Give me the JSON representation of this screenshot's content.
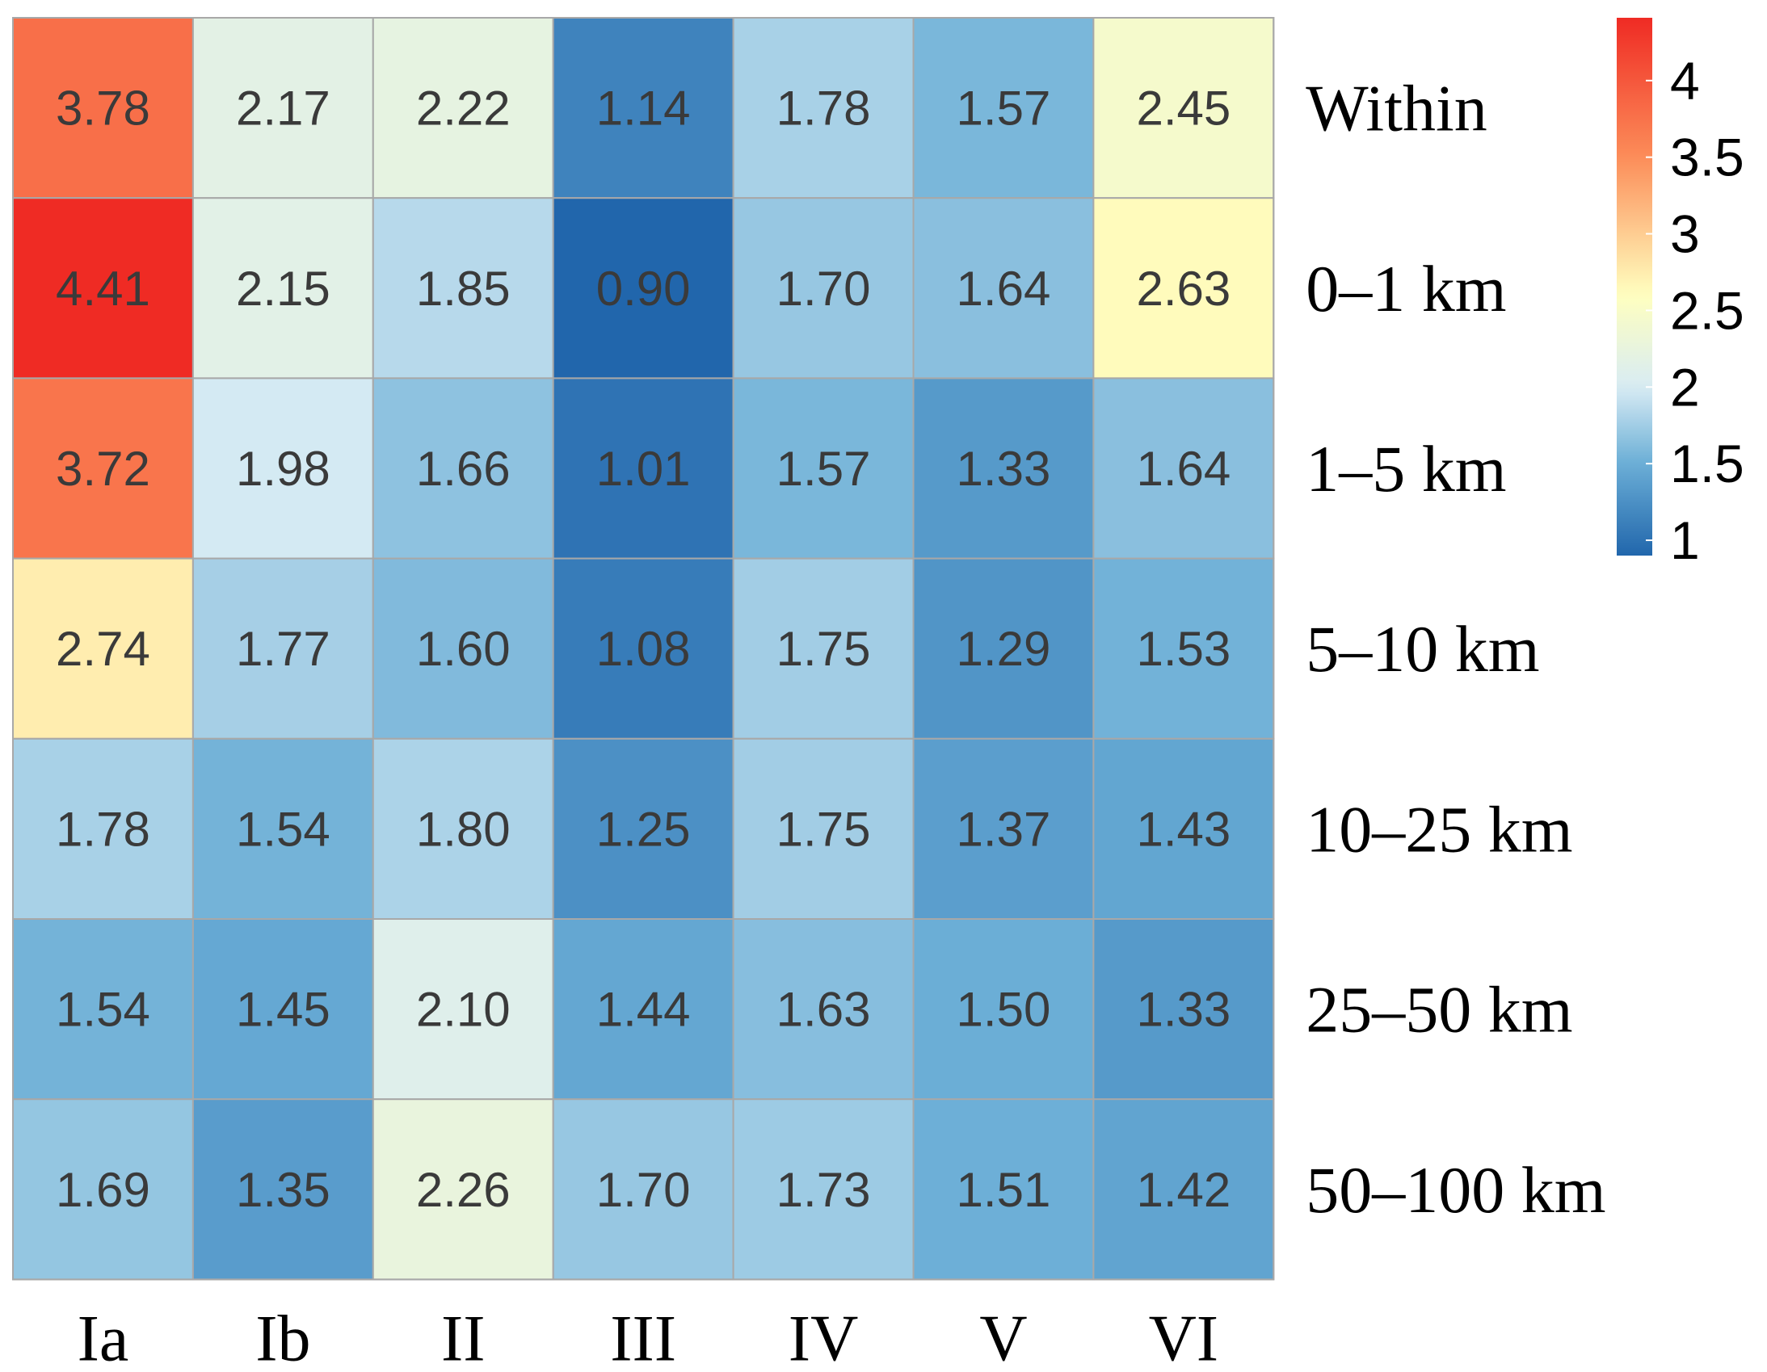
{
  "chart_data": {
    "type": "heatmap",
    "title": "",
    "xlabel": "",
    "ylabel": "",
    "columns": [
      "Ia",
      "Ib",
      "II",
      "III",
      "IV",
      "V",
      "VI"
    ],
    "rows": [
      "Within",
      "0–1 km",
      "1–5 km",
      "5–10 km",
      "10–25 km",
      "25–50 km",
      "50–100 km"
    ],
    "values": [
      [
        3.78,
        2.17,
        2.22,
        1.14,
        1.78,
        1.57,
        2.45
      ],
      [
        4.41,
        2.15,
        1.85,
        0.9,
        1.7,
        1.64,
        2.63
      ],
      [
        3.72,
        1.98,
        1.66,
        1.01,
        1.57,
        1.33,
        1.64
      ],
      [
        2.74,
        1.77,
        1.6,
        1.08,
        1.75,
        1.29,
        1.53
      ],
      [
        1.78,
        1.54,
        1.8,
        1.25,
        1.75,
        1.37,
        1.43
      ],
      [
        1.54,
        1.45,
        2.1,
        1.44,
        1.63,
        1.5,
        1.33
      ],
      [
        1.69,
        1.35,
        2.26,
        1.7,
        1.73,
        1.51,
        1.42
      ]
    ],
    "value_labels": [
      [
        "3.78",
        "2.17",
        "2.22",
        "1.14",
        "1.78",
        "1.57",
        "2.45"
      ],
      [
        "4.41",
        "2.15",
        "1.85",
        "0.90",
        "1.70",
        "1.64",
        "2.63"
      ],
      [
        "3.72",
        "1.98",
        "1.66",
        "1.01",
        "1.57",
        "1.33",
        "1.64"
      ],
      [
        "2.74",
        "1.77",
        "1.60",
        "1.08",
        "1.75",
        "1.29",
        "1.53"
      ],
      [
        "1.78",
        "1.54",
        "1.80",
        "1.25",
        "1.75",
        "1.37",
        "1.43"
      ],
      [
        "1.54",
        "1.45",
        "2.10",
        "1.44",
        "1.63",
        "1.50",
        "1.33"
      ],
      [
        "1.69",
        "1.35",
        "2.26",
        "1.70",
        "1.73",
        "1.51",
        "1.42"
      ]
    ],
    "color_scale": {
      "min": 0.9,
      "max": 4.41,
      "stops": [
        {
          "value": 0.9,
          "color": "#2166ac"
        },
        {
          "value": 1.5,
          "color": "#6baed6"
        },
        {
          "value": 2.0,
          "color": "#d8ecf4"
        },
        {
          "value": 2.6,
          "color": "#ffffbf"
        },
        {
          "value": 3.5,
          "color": "#fc8d59"
        },
        {
          "value": 4.41,
          "color": "#ef2b24"
        }
      ]
    },
    "legend": {
      "position": "right",
      "ticks": [
        "1",
        "1.5",
        "2",
        "2.5",
        "3",
        "3.5",
        "4"
      ],
      "tick_values": [
        1,
        1.5,
        2,
        2.5,
        3,
        3.5,
        4
      ]
    },
    "grid": true
  }
}
